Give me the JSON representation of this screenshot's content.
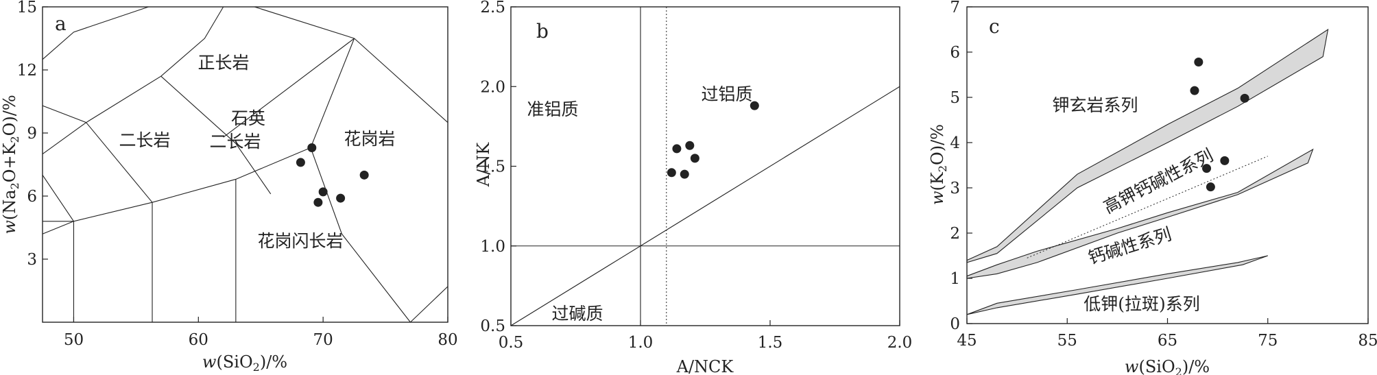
{
  "chart_data": [
    {
      "type": "scatter",
      "panel_label": "a",
      "xlabel": "w(SiO₂)/%",
      "ylabel": "w(Na₂O+K₂O)/%",
      "xlim": [
        47.5,
        80
      ],
      "ylim": [
        0,
        15
      ],
      "xticks": [
        50,
        60,
        70,
        80
      ],
      "yticks": [
        3,
        6,
        9,
        12,
        15
      ],
      "field_labels": [
        "正长岩",
        "石英",
        "二长岩",
        "二长岩",
        "花岗岩",
        "花岗闪长岩"
      ],
      "field_boundaries": [
        [
          [
            47.5,
            12.5
          ],
          [
            50,
            13.8
          ],
          [
            56,
            15
          ]
        ],
        [
          [
            47.5,
            10.3
          ],
          [
            51,
            9.5
          ],
          [
            57,
            11.7
          ],
          [
            60.5,
            13.5
          ],
          [
            62,
            15
          ]
        ],
        [
          [
            47.5,
            8
          ],
          [
            51,
            9.5
          ]
        ],
        [
          [
            51,
            9.5
          ],
          [
            56.3,
            5.7
          ]
        ],
        [
          [
            56.3,
            5.7
          ],
          [
            56.3,
            0
          ]
        ],
        [
          [
            57,
            11.7
          ],
          [
            63,
            8.5
          ]
        ],
        [
          [
            63,
            8.5
          ],
          [
            65.8,
            6.1
          ]
        ],
        [
          [
            62,
            8.8
          ],
          [
            72.5,
            13.5
          ]
        ],
        [
          [
            72.5,
            13.5
          ],
          [
            80,
            9.5
          ]
        ],
        [
          [
            69,
            8.3
          ],
          [
            72.5,
            13.5
          ]
        ],
        [
          [
            50,
            4.8
          ],
          [
            56.3,
            5.7
          ],
          [
            63,
            6.8
          ],
          [
            69,
            8.3
          ]
        ],
        [
          [
            63,
            6.8
          ],
          [
            63,
            0
          ]
        ],
        [
          [
            69,
            8.3
          ],
          [
            71.5,
            4.2
          ],
          [
            77,
            0
          ]
        ],
        [
          [
            77,
            0
          ],
          [
            80,
            1.7
          ]
        ],
        [
          [
            47.5,
            4.2
          ],
          [
            50,
            4.8
          ]
        ],
        [
          [
            47.5,
            7
          ],
          [
            50,
            4.8
          ]
        ],
        [
          [
            50,
            4.8
          ],
          [
            50,
            0
          ]
        ],
        [
          [
            50,
            4.8
          ],
          [
            47.5,
            4.8
          ]
        ],
        [
          [
            64.5,
            15
          ],
          [
            72.5,
            13.5
          ]
        ]
      ],
      "points": [
        [
          68.2,
          7.6
        ],
        [
          69.1,
          8.3
        ],
        [
          70,
          6.2
        ],
        [
          69.6,
          5.7
        ],
        [
          71.4,
          5.9
        ],
        [
          73.3,
          7
        ]
      ]
    },
    {
      "type": "scatter",
      "panel_label": "b",
      "xlabel": "A/NCK",
      "ylabel": "A/NK",
      "xlim": [
        0.5,
        2.0
      ],
      "ylim": [
        0.5,
        2.5
      ],
      "xticks": [
        "0.5",
        "1.0",
        "1.5",
        "2.0"
      ],
      "yticks": [
        "0.5",
        "1.0",
        "1.5",
        "2.0",
        "2.5"
      ],
      "field_labels": [
        "准铝质",
        "过铝质",
        "过碱质"
      ],
      "reference_lines": {
        "vertical": 1.0,
        "horizontal": 1.0,
        "dotted_vertical": 1.1,
        "diagonal_through": [
          [
            0.5,
            0.5
          ],
          [
            2.0,
            2.0
          ]
        ]
      },
      "points": [
        [
          1.12,
          1.46
        ],
        [
          1.14,
          1.61
        ],
        [
          1.17,
          1.45
        ],
        [
          1.19,
          1.63
        ],
        [
          1.21,
          1.55
        ],
        [
          1.44,
          1.88
        ]
      ]
    },
    {
      "type": "scatter",
      "panel_label": "c",
      "xlabel": "w(SiO₂)/%",
      "ylabel": "w(K₂O)/%",
      "xlim": [
        45,
        85
      ],
      "ylim": [
        0,
        7
      ],
      "xticks": [
        45,
        55,
        65,
        75,
        85
      ],
      "yticks": [
        0,
        1,
        2,
        3,
        4,
        5,
        6,
        7
      ],
      "field_labels": [
        "钾玄岩系列",
        "高钾钙碱性系列",
        "钙碱性系列",
        "低钾(拉斑)系列"
      ],
      "bands": [
        [
          [
            45,
            1.4
          ],
          [
            48,
            1.7
          ],
          [
            56,
            3.3
          ],
          [
            65,
            4.4
          ],
          [
            72,
            5.2
          ],
          [
            81,
            6.5
          ],
          [
            80.5,
            5.9
          ],
          [
            72,
            4.8
          ],
          [
            65,
            4
          ],
          [
            56,
            3
          ],
          [
            48,
            1.55
          ],
          [
            45,
            1.35
          ]
        ],
        [
          [
            45,
            1.05
          ],
          [
            48,
            1.3
          ],
          [
            52,
            1.6
          ],
          [
            60,
            2.1
          ],
          [
            65,
            2.45
          ],
          [
            72,
            2.9
          ],
          [
            79.5,
            3.85
          ],
          [
            79,
            3.55
          ],
          [
            72,
            2.85
          ],
          [
            65,
            2.35
          ],
          [
            60,
            2
          ],
          [
            52,
            1.35
          ],
          [
            48,
            1.1
          ],
          [
            45,
            1.0
          ]
        ],
        [
          [
            45,
            0.2
          ],
          [
            48,
            0.45
          ],
          [
            56,
            0.75
          ],
          [
            65,
            1.1
          ],
          [
            72,
            1.35
          ],
          [
            75,
            1.5
          ],
          [
            72.5,
            1.3
          ],
          [
            65,
            1.0
          ],
          [
            56,
            0.65
          ],
          [
            48,
            0.35
          ],
          [
            45,
            0.2
          ]
        ]
      ],
      "dotted_line": [
        [
          51,
          1.45
        ],
        [
          75,
          3.7
        ]
      ],
      "points": [
        [
          67.7,
          5.15
        ],
        [
          68.1,
          5.78
        ],
        [
          72.7,
          4.98
        ],
        [
          68.9,
          3.43
        ],
        [
          69.3,
          3.02
        ],
        [
          70.7,
          3.6
        ]
      ]
    }
  ]
}
